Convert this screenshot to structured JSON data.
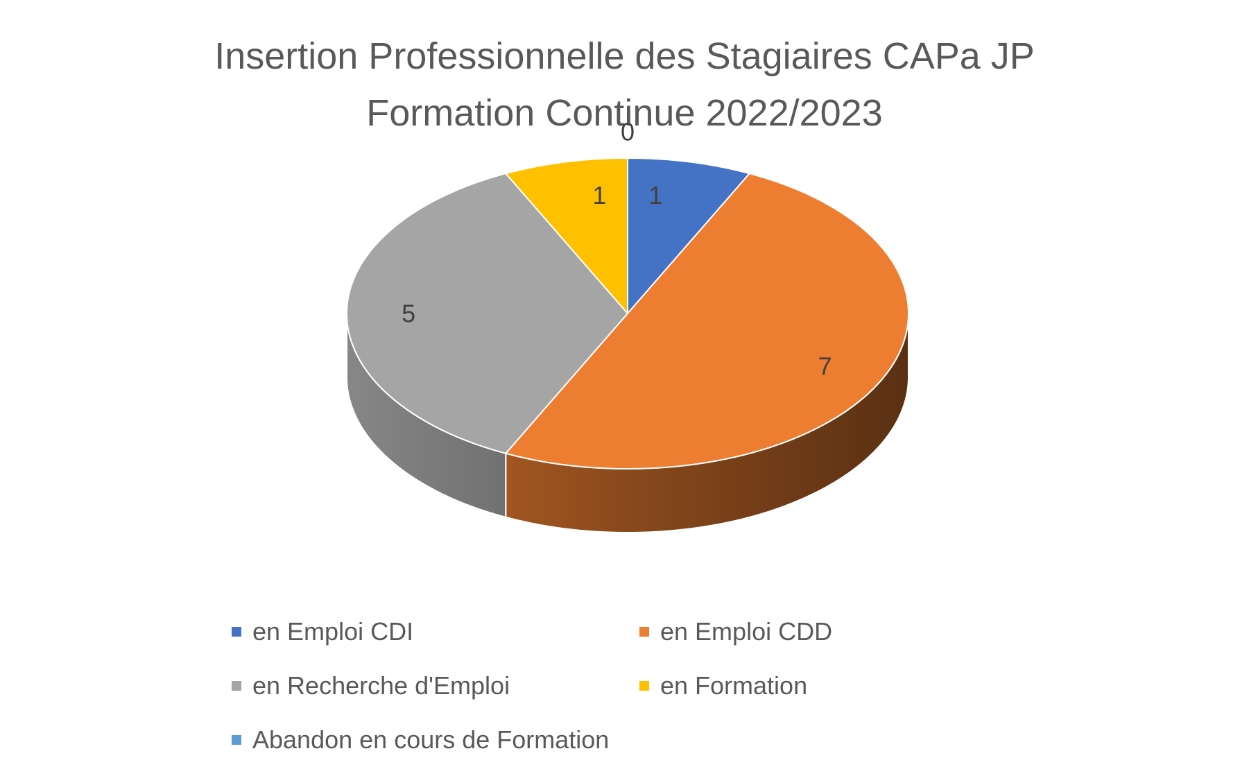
{
  "chart_data": {
    "type": "pie",
    "title_lines": [
      "Insertion Professionnelle des Stagiaires CAPa JP",
      "Formation Continue 2022/2023"
    ],
    "three_d": true,
    "start_angle_deg": 90,
    "direction": "clockwise",
    "legend_position": "bottom",
    "slices": [
      {
        "name": "en Emploi CDI",
        "value": 1,
        "label": "1",
        "color": "#4472C4"
      },
      {
        "name": "en Emploi CDD",
        "value": 7,
        "label": "7",
        "color": "#ED7D31"
      },
      {
        "name": "en Recherche d'Emploi",
        "value": 5,
        "label": "5",
        "color": "#A5A5A5"
      },
      {
        "name": "en Formation",
        "value": 1,
        "label": "1",
        "color": "#FFC000"
      },
      {
        "name": "Abandon en cours de Formation",
        "value": 0,
        "label": "0",
        "color": "#5B9BD5"
      }
    ]
  }
}
